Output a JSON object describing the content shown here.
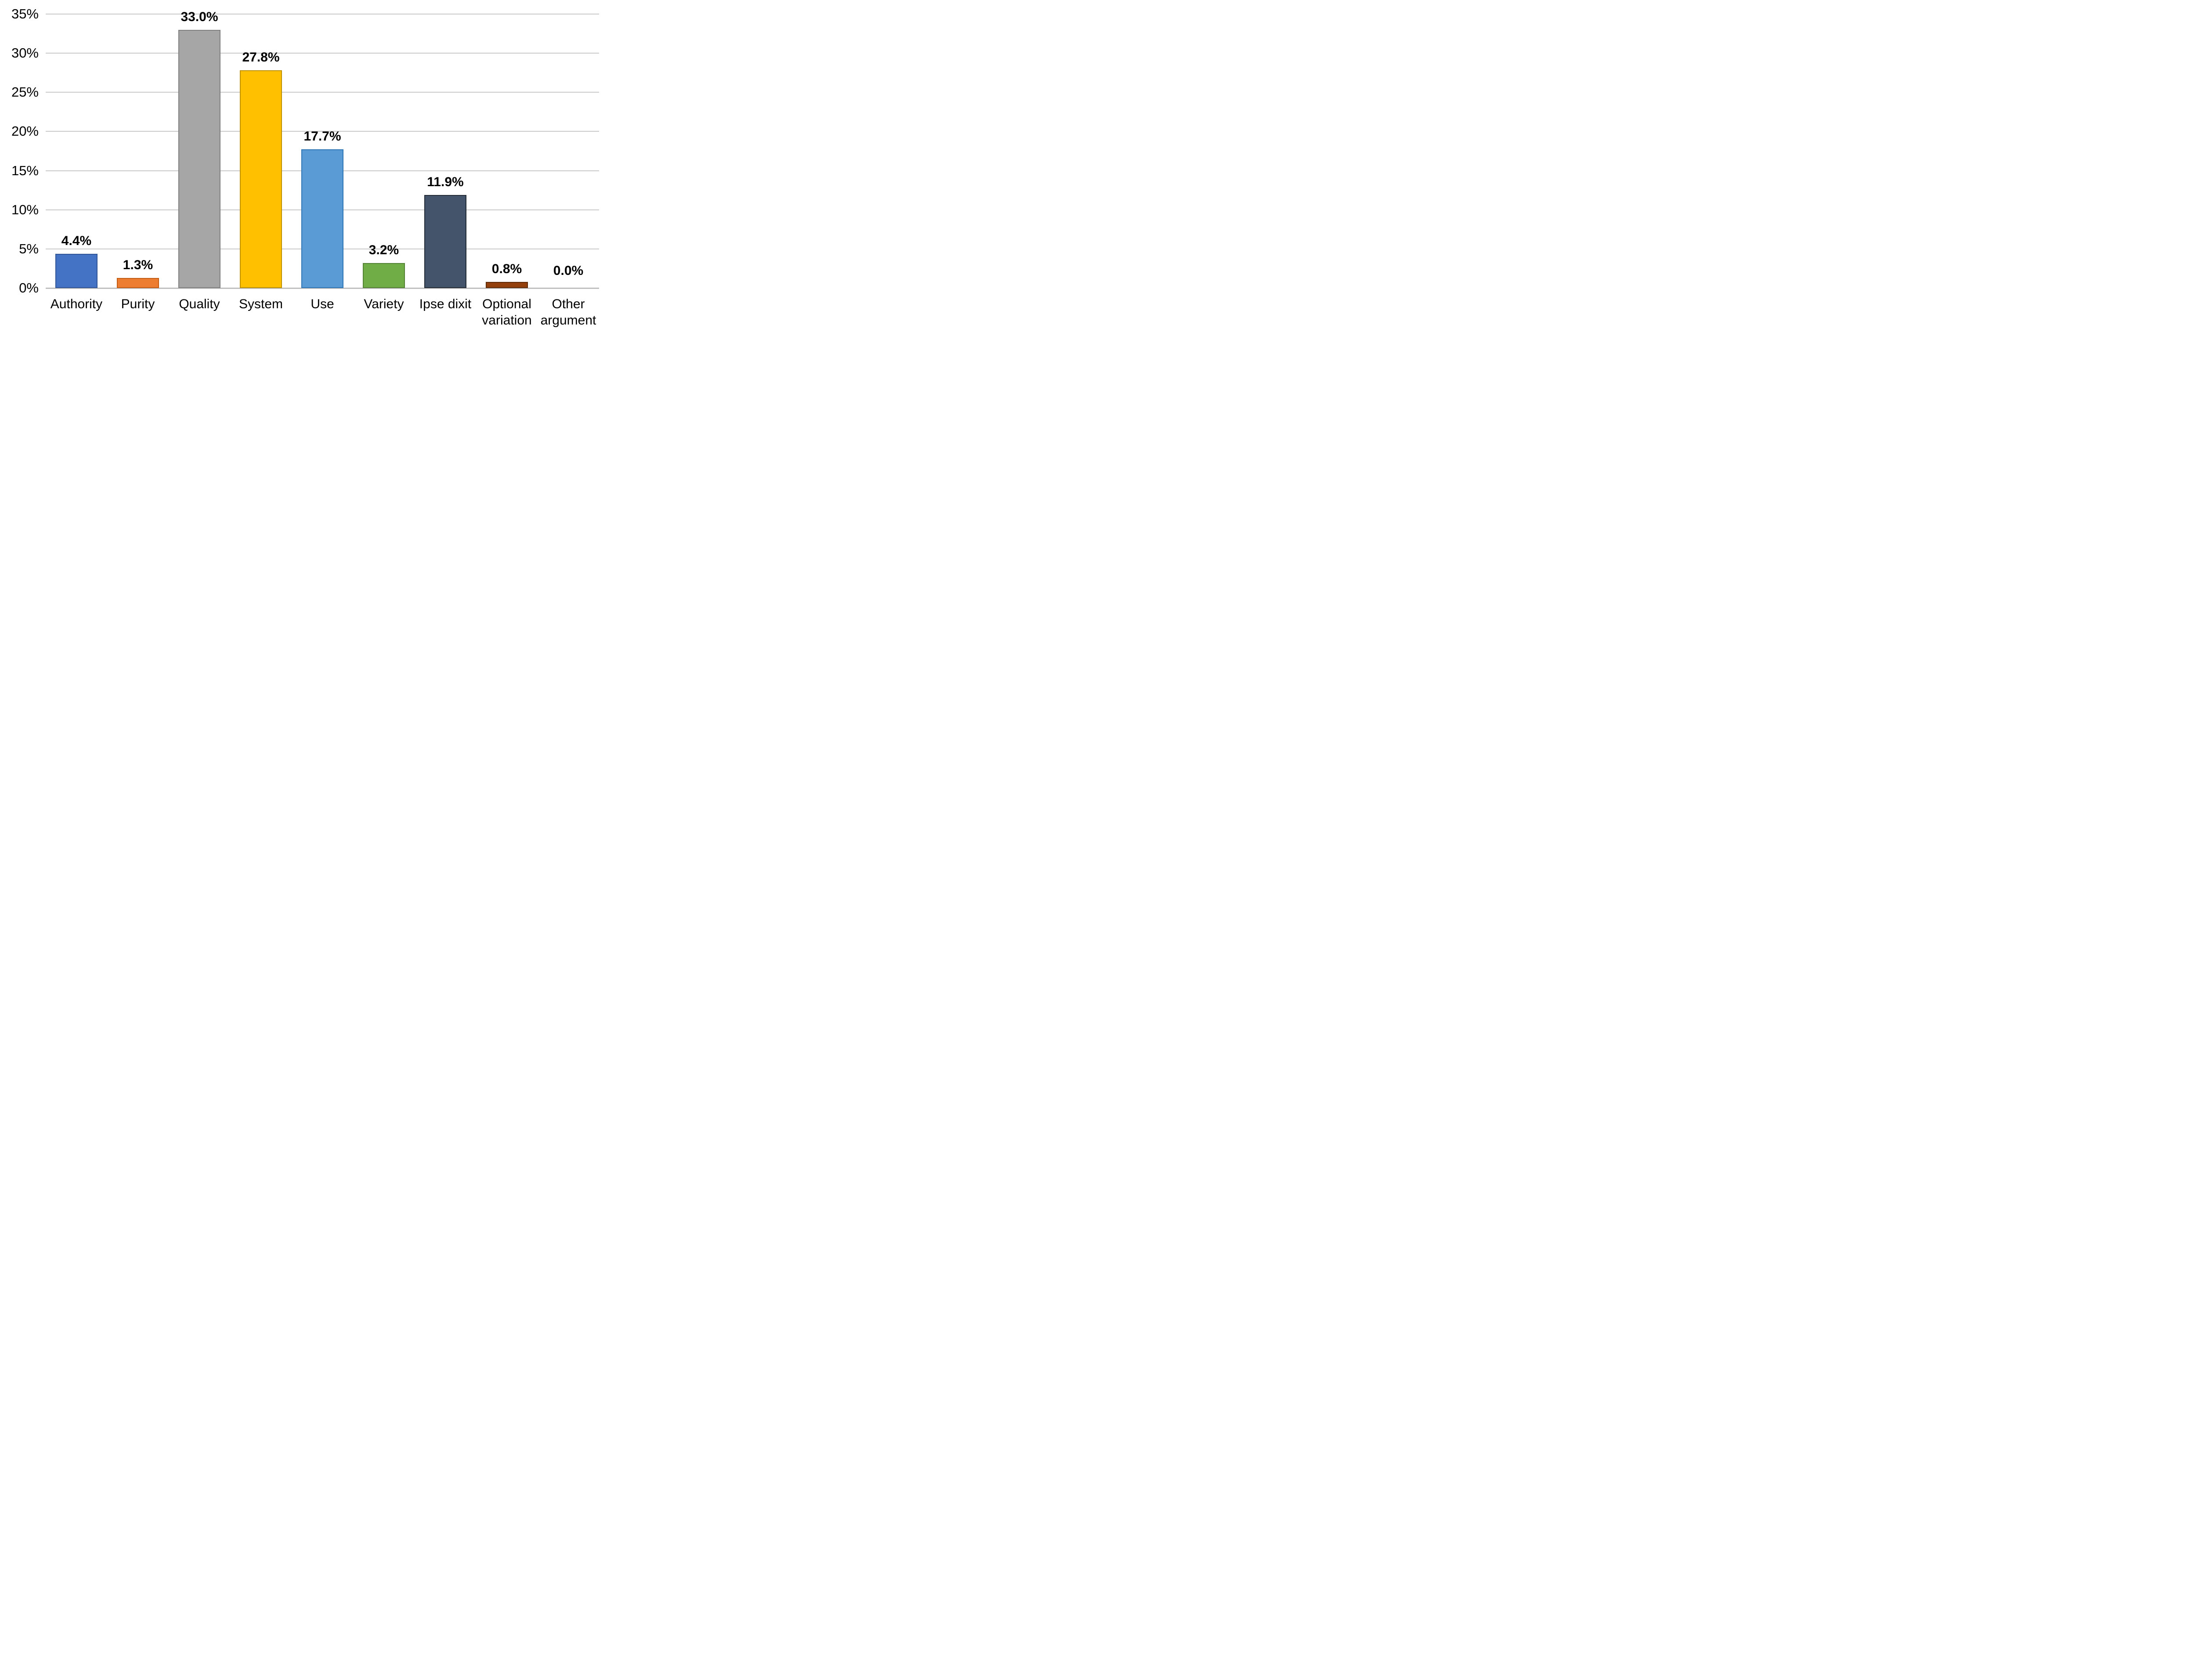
{
  "chart_data": {
    "type": "bar",
    "title": "",
    "xlabel": "",
    "ylabel": "",
    "categories": [
      "Authority",
      "Purity",
      "Quality",
      "System",
      "Use",
      "Variety",
      "Ipse dixit",
      "Optional variation",
      "Other argument"
    ],
    "values": [
      4.4,
      1.3,
      33.0,
      27.8,
      17.7,
      3.2,
      11.9,
      0.8,
      0.0
    ],
    "value_labels": [
      "4.4%",
      "1.3%",
      "33.0%",
      "27.8%",
      "17.7%",
      "3.2%",
      "11.9%",
      "0.8%",
      "0.0%"
    ],
    "bar_colors": [
      "#4472C4",
      "#ED7D31",
      "#A6A6A6",
      "#FFC000",
      "#5B9BD5",
      "#70AD47",
      "#44546A",
      "#93400C",
      "#93400C"
    ],
    "bar_border_colors": [
      "#2F5597",
      "#C55A11",
      "#7F7F7F",
      "#BF9000",
      "#2E75B6",
      "#548235",
      "#222A35",
      "#5E2906",
      "#5E2906"
    ],
    "ylim": [
      0,
      35
    ],
    "ytick_step": 5,
    "ytick_labels": [
      "0%",
      "5%",
      "10%",
      "15%",
      "20%",
      "25%",
      "30%",
      "35%"
    ],
    "grid": "horizontal",
    "legend": "none",
    "gridline_color": "#C9C9C9",
    "axis_line_color": "#BFBFBF",
    "text_color": "#000000",
    "background_color": "#FFFFFF"
  }
}
